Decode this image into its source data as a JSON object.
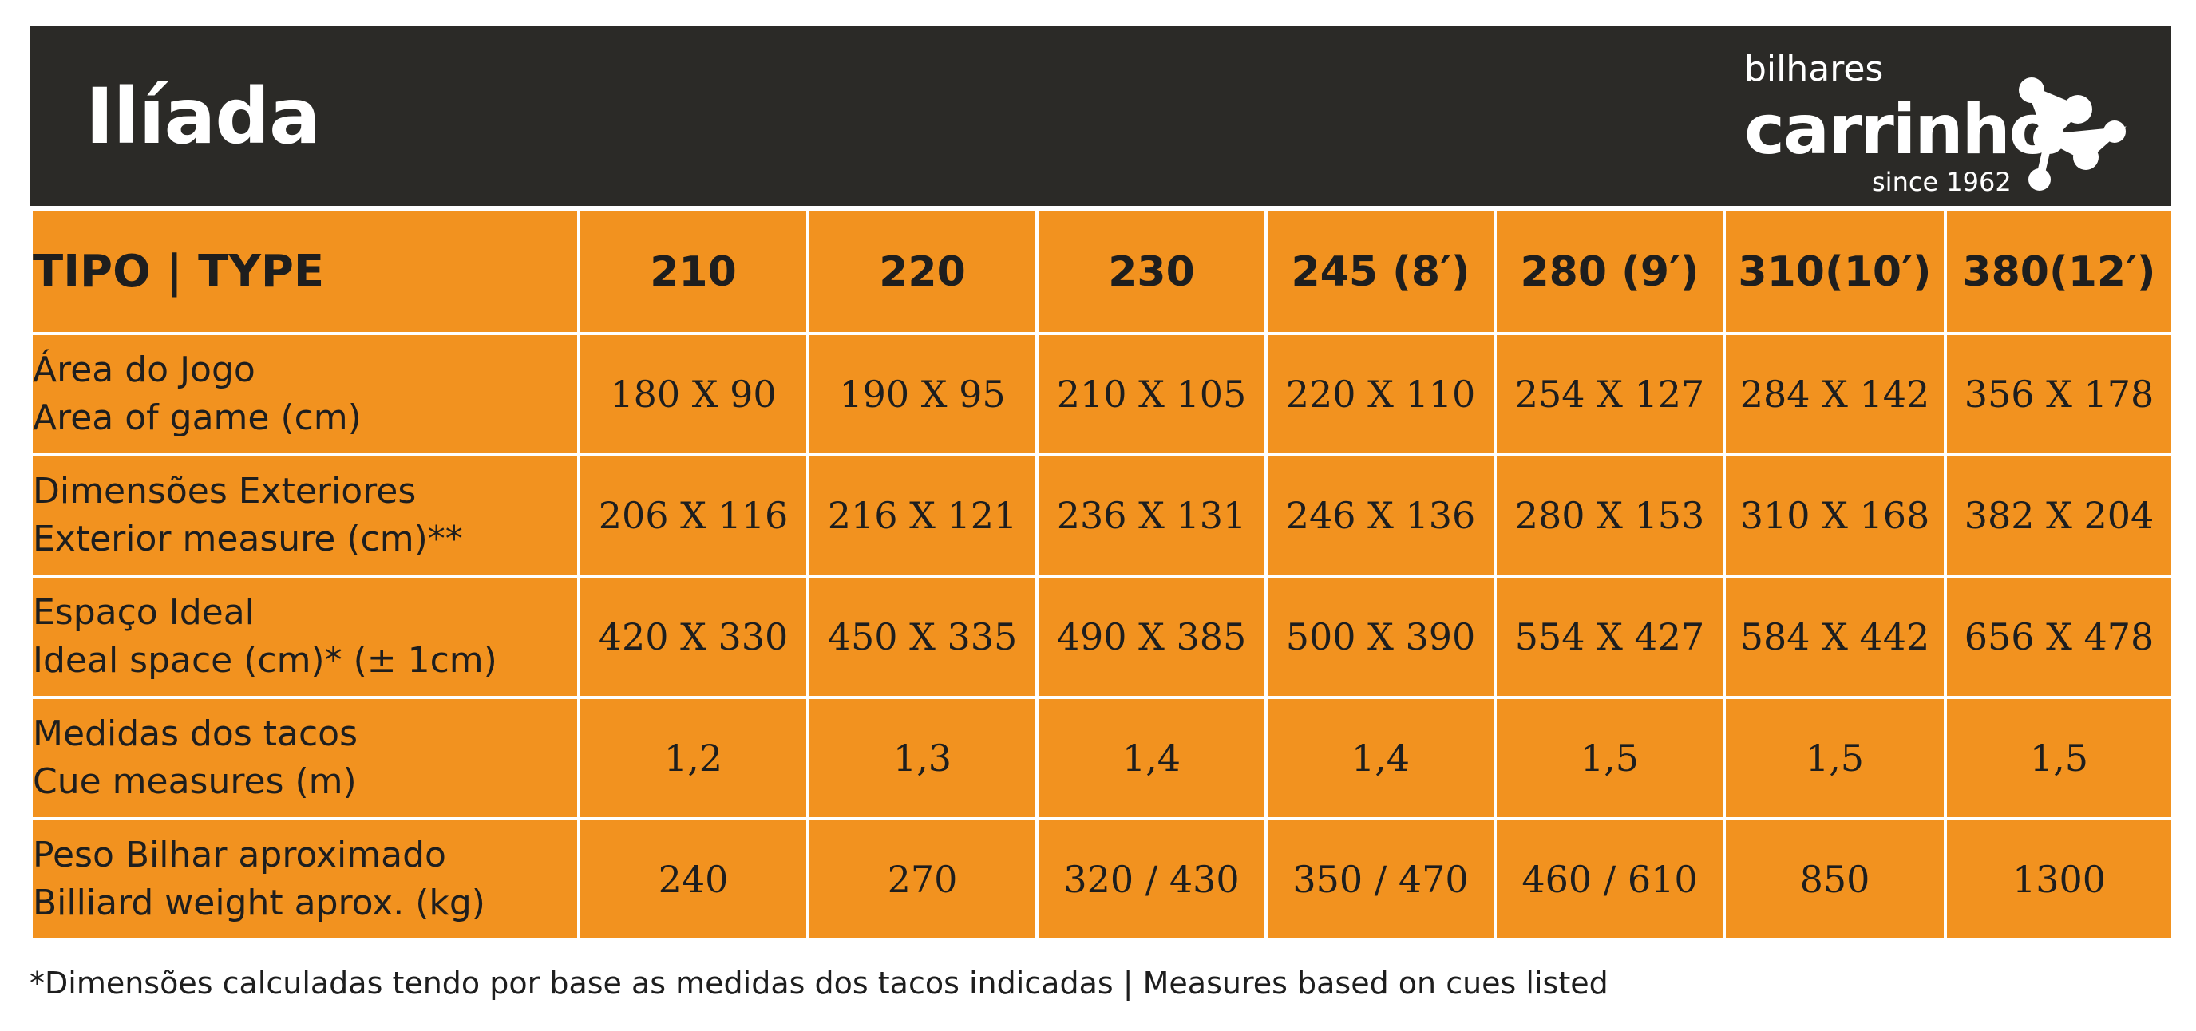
{
  "header": {
    "title": "Ilíada",
    "logo": {
      "top": "bilhares",
      "main": "carrinho",
      "sub": "since 1962"
    }
  },
  "table": {
    "corner_label": "TIPO | TYPE",
    "columns": [
      "210",
      "220",
      "230",
      "245 (8′)",
      "280 (9′)",
      "310(10′)",
      "380(12′)"
    ],
    "rows": [
      {
        "label_pt": "Área do Jogo",
        "label_en": "Area of game (cm)",
        "values": [
          "180 X 90",
          "190 X 95",
          "210 X 105",
          "220 X 110",
          "254 X 127",
          "284 X 142",
          "356 X 178"
        ]
      },
      {
        "label_pt": "Dimensões Exteriores",
        "label_en": "Exterior measure (cm)**",
        "values": [
          "206 X 116",
          "216 X 121",
          "236 X 131",
          "246 X 136",
          "280 X 153",
          "310 X 168",
          "382 X 204"
        ]
      },
      {
        "label_pt": "Espaço Ideal",
        "label_en": "Ideal space (cm)* (± 1cm)",
        "values": [
          "420 X 330",
          "450 X 335",
          "490 X 385",
          "500 X 390",
          "554 X 427",
          "584 X 442",
          "656 X 478"
        ]
      },
      {
        "label_pt": "Medidas dos tacos",
        "label_en": "Cue measures (m)",
        "values": [
          "1,2",
          "1,3",
          "1,4",
          "1,4",
          "1,5",
          "1,5",
          "1,5"
        ]
      },
      {
        "label_pt": "Peso Bilhar aproximado",
        "label_en": "Billiard weight aprox. (kg)",
        "values": [
          "240",
          "270",
          "320 / 430",
          "350 / 470",
          "460 / 610",
          "850",
          "1300"
        ]
      }
    ]
  },
  "footnote": "*Dimensões calculadas tendo por base as medidas dos tacos indicadas | Measures based on cues listed",
  "colors": {
    "header_bg": "#2b2a27",
    "table_bg": "#f2921f",
    "grid": "#ffffff",
    "text_dark": "#1e1e1e"
  }
}
